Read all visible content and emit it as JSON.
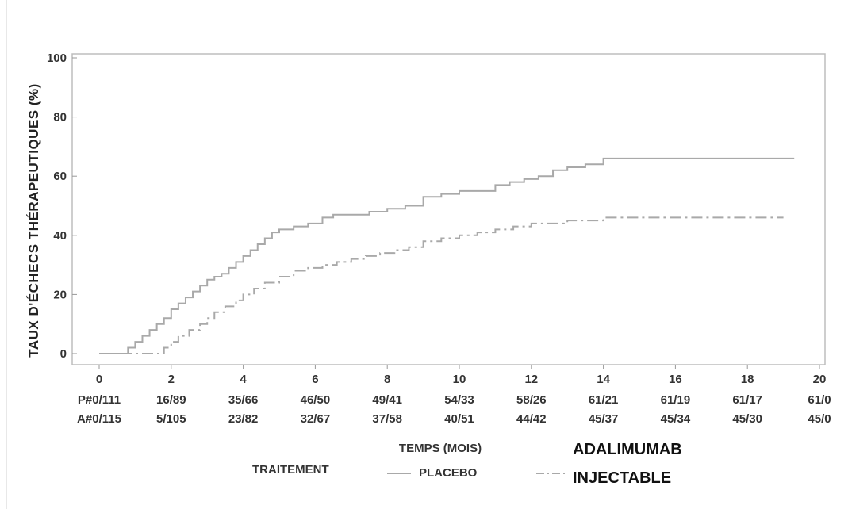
{
  "chart_data": {
    "type": "line",
    "ylabel": "TAUX D'ÉCHECS THÉRAPEUTIQUES (%)",
    "xlabel": "TEMPS (MOIS)",
    "xlim": [
      0,
      20
    ],
    "ylim": [
      0,
      100
    ],
    "x_ticks": [
      "0",
      "2",
      "4",
      "6",
      "8",
      "10",
      "12",
      "14",
      "16",
      "18",
      "20"
    ],
    "y_ticks": [
      "0",
      "20",
      "40",
      "60",
      "80",
      "100"
    ],
    "series": [
      {
        "name": "PLACEBO",
        "color": "#a9a9a9",
        "style": "solid",
        "x": [
          0,
          0.6,
          0.8,
          1.0,
          1.2,
          1.4,
          1.6,
          1.8,
          2.0,
          2.2,
          2.4,
          2.6,
          2.8,
          3.0,
          3.2,
          3.4,
          3.6,
          3.8,
          4.0,
          4.2,
          4.4,
          4.6,
          4.8,
          5.0,
          5.4,
          5.8,
          6.2,
          6.5,
          7.0,
          7.5,
          8.0,
          8.5,
          9.0,
          9.5,
          10.0,
          10.5,
          11.0,
          11.4,
          11.8,
          12.2,
          12.6,
          13.0,
          13.5,
          14.0,
          19.3
        ],
        "y": [
          0,
          0,
          2,
          4,
          6,
          8,
          10,
          12,
          15,
          17,
          19,
          21,
          23,
          25,
          26,
          27,
          29,
          31,
          33,
          35,
          37,
          39,
          41,
          42,
          43,
          44,
          46,
          47,
          47,
          48,
          49,
          50,
          53,
          54,
          55,
          55,
          57,
          58,
          59,
          60,
          62,
          63,
          64,
          66,
          66
        ]
      },
      {
        "name": "ADALIMUMAB INJECTABLE",
        "color": "#a9a9a9",
        "style": "dashdot",
        "x": [
          0,
          1.5,
          1.8,
          2.0,
          2.2,
          2.5,
          2.8,
          3.0,
          3.2,
          3.5,
          3.8,
          4.0,
          4.3,
          4.6,
          5.0,
          5.4,
          5.8,
          6.2,
          6.6,
          7.0,
          7.4,
          7.8,
          8.2,
          8.6,
          9.0,
          9.5,
          10.0,
          10.5,
          11.0,
          11.5,
          12.0,
          12.5,
          13.0,
          13.5,
          14.0,
          19.0
        ],
        "y": [
          0,
          0,
          2,
          4,
          6,
          8,
          10,
          12,
          14,
          16,
          18,
          20,
          22,
          24,
          26,
          28,
          29,
          30,
          31,
          32,
          33,
          34,
          35,
          36,
          38,
          39,
          40,
          41,
          42,
          43,
          44,
          44,
          45,
          45,
          46,
          46
        ]
      }
    ],
    "at_risk": {
      "placebo": [
        "P#0/111",
        "16/89",
        "35/66",
        "46/50",
        "49/41",
        "54/33",
        "58/26",
        "61/21",
        "61/19",
        "61/17",
        "61/0"
      ],
      "adalimumab": [
        "A#0/115",
        "5/105",
        "23/82",
        "32/67",
        "37/58",
        "40/51",
        "44/42",
        "45/37",
        "45/34",
        "45/30",
        "45/0"
      ]
    },
    "legend": {
      "title": "TRAITEMENT",
      "entries": [
        "PLACEBO",
        "ADALIMUMAB",
        "INJECTABLE"
      ]
    }
  }
}
